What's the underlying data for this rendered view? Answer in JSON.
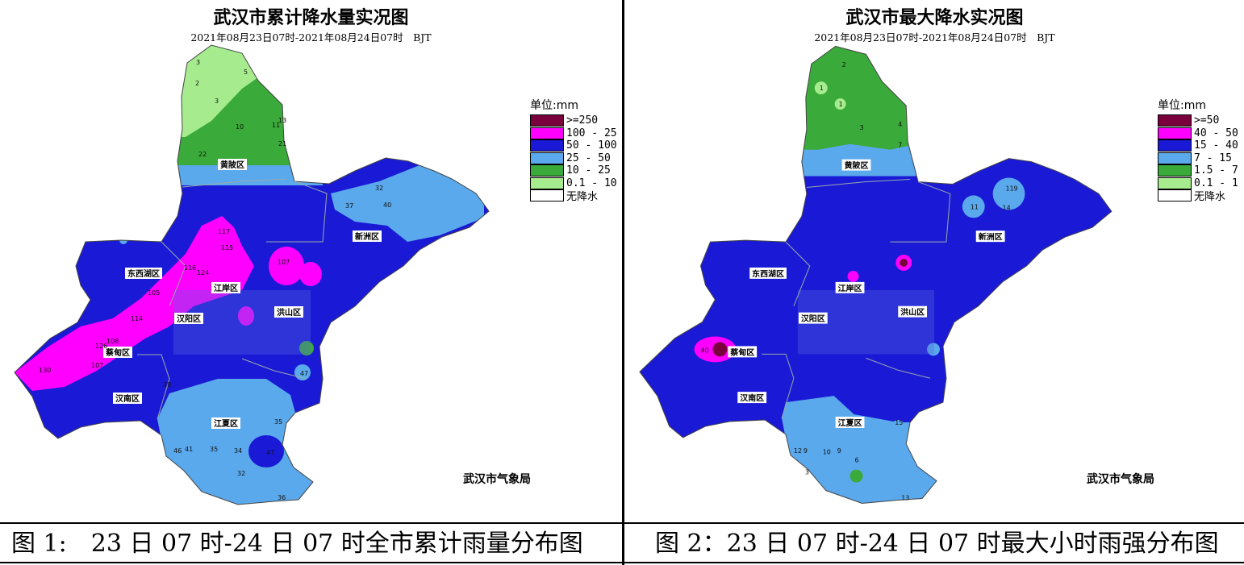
{
  "left_panel": {
    "title": "武汉市累计降水量实况图",
    "subtitle": "2021年08月23日07时-2021年08月24日07时　BJT",
    "legend_unit": "单位:mm",
    "legend": [
      {
        "label": ">=250",
        "color": "#7a003d"
      },
      {
        "label": "100 - 25",
        "color": "#ff00ff"
      },
      {
        "label": "50 - 100",
        "color": "#1a1ad6"
      },
      {
        "label": "25 - 50",
        "color": "#5aa9ec"
      },
      {
        "label": "10 - 25",
        "color": "#3aaa3a"
      },
      {
        "label": "0.1 - 10",
        "color": "#a6ec8e"
      },
      {
        "label": "无降水",
        "color": "#ffffff"
      }
    ],
    "source": "武汉市气象局",
    "districts": {
      "huangpi": "黄陂区",
      "xinzhou": "新洲区",
      "dongxihu": "东西湖区",
      "caidian": "蔡甸区",
      "hannan": "汉南区",
      "jiangxia": "江夏区",
      "hanyang": "汉阳区",
      "jiangan": "江岸区",
      "hongshan": "洪山区"
    },
    "values": [
      "3",
      "5",
      "2",
      "3",
      "10",
      "11",
      "13",
      "21",
      "22",
      "32",
      "40",
      "37",
      "117",
      "115",
      "116",
      "124",
      "105",
      "114",
      "107",
      "108",
      "126",
      "107",
      "130",
      "38",
      "35",
      "46",
      "41",
      "35",
      "34",
      "47",
      "32",
      "36",
      "47"
    ]
  },
  "right_panel": {
    "title": "武汉市最大降水实况图",
    "subtitle": "2021年08月23日07时-2021年08月24日07时　BJT",
    "legend_unit": "单位:mm",
    "legend": [
      {
        "label": ">=50",
        "color": "#7a003d"
      },
      {
        "label": "40 - 50",
        "color": "#ff00ff"
      },
      {
        "label": "15 - 40",
        "color": "#1a1ad6"
      },
      {
        "label": "7 - 15",
        "color": "#5aa9ec"
      },
      {
        "label": "1.5 - 7",
        "color": "#3aaa3a"
      },
      {
        "label": "0.1 - 1",
        "color": "#a6ec8e"
      },
      {
        "label": "无降水",
        "color": "#ffffff"
      }
    ],
    "source": "武汉市气象局",
    "districts": {
      "huangpi": "黄陂区",
      "xinzhou": "新洲区",
      "dongxihu": "东西湖区",
      "caidian": "蔡甸区",
      "hannan": "汉南区",
      "jiangxia": "江夏区",
      "hanyang": "汉阳区",
      "jiangan": "江岸区",
      "hongshan": "洪山区"
    },
    "values": [
      "2",
      "1",
      "1",
      "3",
      "4",
      "7",
      "11",
      "9",
      "14",
      "11",
      "40",
      "15",
      "12",
      "9",
      "10",
      "9",
      "6",
      "13",
      "3"
    ]
  },
  "captions": {
    "left": "图 1:　23 日 07 时-24 日 07 时全市累计雨量分布图",
    "right": "图 2：23 日 07 时-24 日 07 时最大小时雨强分布图"
  }
}
